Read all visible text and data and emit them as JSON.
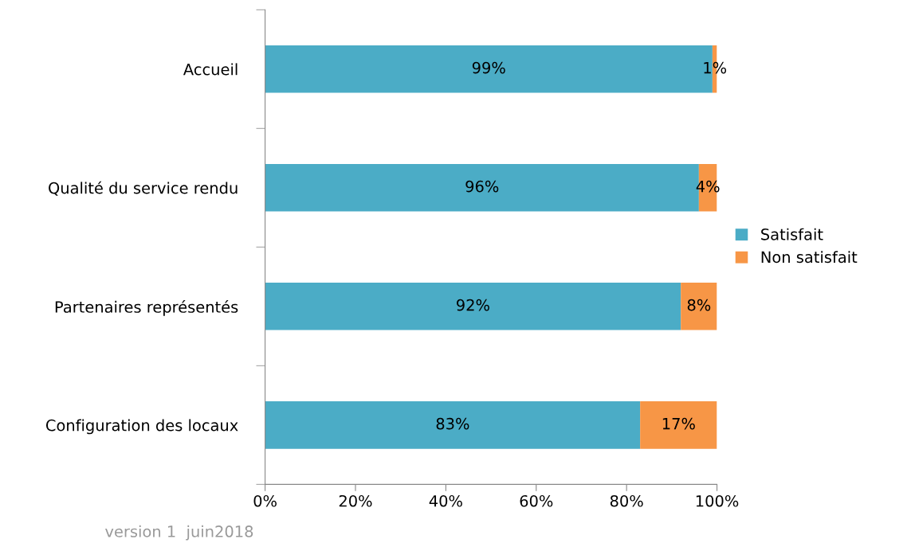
{
  "chart_data": {
    "type": "bar",
    "orientation": "horizontal",
    "stacked": true,
    "categories": [
      "Accueil",
      "Qualité du service rendu",
      "Partenaires représentés",
      "Configuration des locaux"
    ],
    "series": [
      {
        "name": "Satisfait",
        "color": "#4bacc6",
        "values": [
          99,
          96,
          92,
          83
        ],
        "value_labels": [
          "99%",
          "96%",
          "92%",
          "83%"
        ]
      },
      {
        "name": "Non satisfait",
        "color": "#f79646",
        "values": [
          1,
          4,
          8,
          17
        ],
        "value_labels": [
          "1%",
          "4%",
          "8%",
          "17%"
        ]
      }
    ],
    "xlim": [
      0,
      100
    ],
    "xticks": [
      {
        "value": 0,
        "label": "0%"
      },
      {
        "value": 20,
        "label": "20%"
      },
      {
        "value": 40,
        "label": "40%"
      },
      {
        "value": 60,
        "label": "60%"
      },
      {
        "value": 80,
        "label": "80%"
      },
      {
        "value": 100,
        "label": "100%"
      }
    ],
    "grid": false,
    "legend": "right",
    "annotations": [
      "version 1  juin2018"
    ]
  }
}
